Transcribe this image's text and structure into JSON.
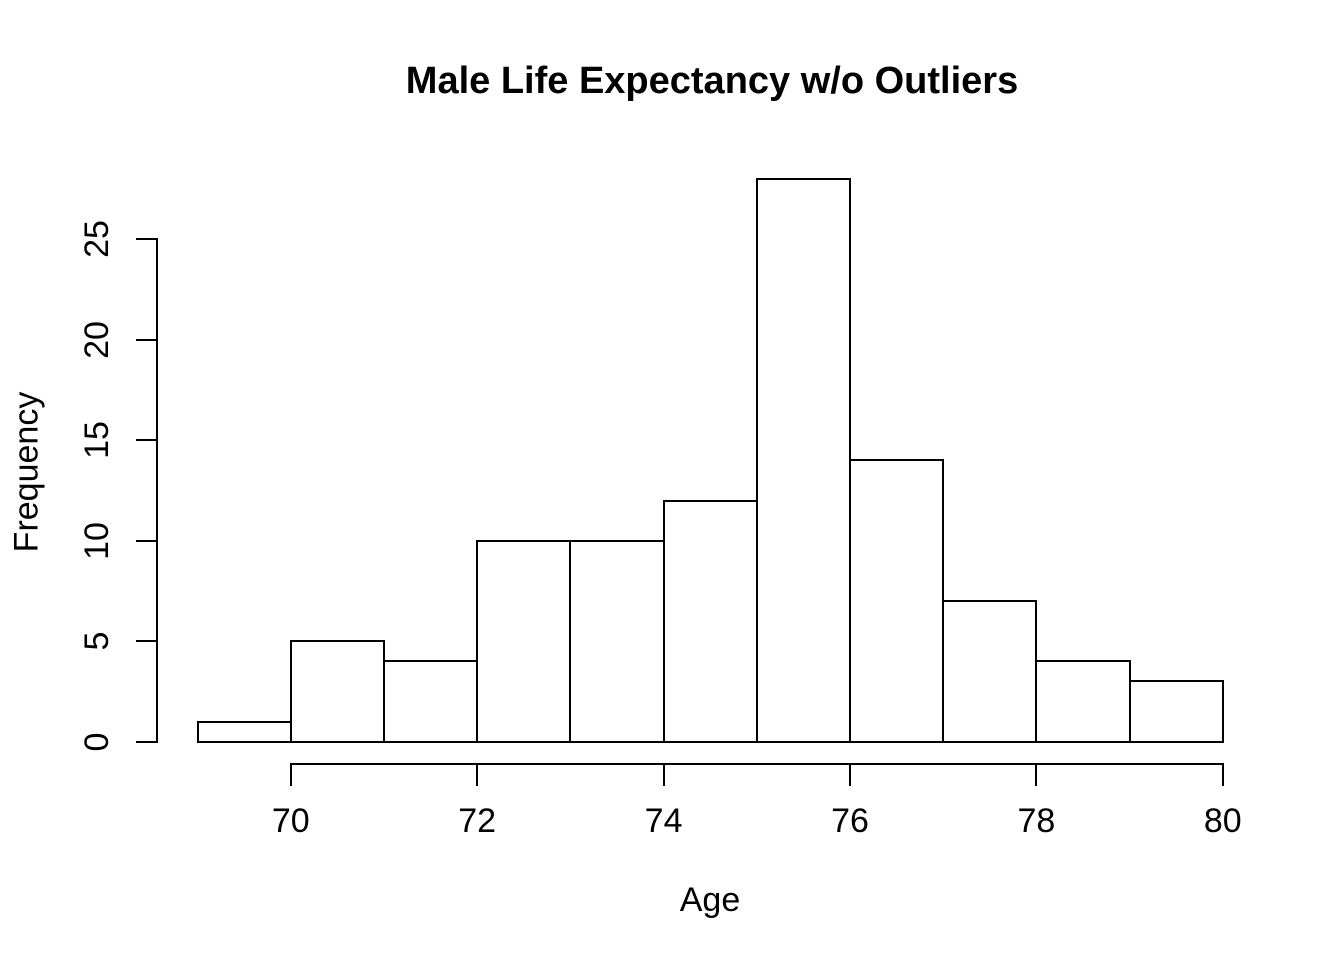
{
  "chart_data": {
    "type": "bar",
    "subtype": "histogram",
    "title": "Male Life Expectancy w/o Outliers",
    "xlabel": "Age",
    "ylabel": "Frequency",
    "bin_edges": [
      69,
      70,
      71,
      72,
      73,
      74,
      75,
      76,
      77,
      78,
      79,
      80
    ],
    "counts": [
      1,
      5,
      4,
      10,
      10,
      12,
      28,
      14,
      7,
      4,
      3
    ],
    "x_ticks": [
      70,
      72,
      74,
      76,
      78,
      80
    ],
    "y_ticks": [
      0,
      5,
      10,
      15,
      20,
      25
    ],
    "xlim": [
      69,
      80
    ],
    "ylim": [
      0,
      28
    ],
    "grid": false,
    "legend": null,
    "bar_fill": "#ffffff",
    "bar_stroke": "#000000",
    "axis_color": "#000000",
    "background": "#ffffff"
  }
}
